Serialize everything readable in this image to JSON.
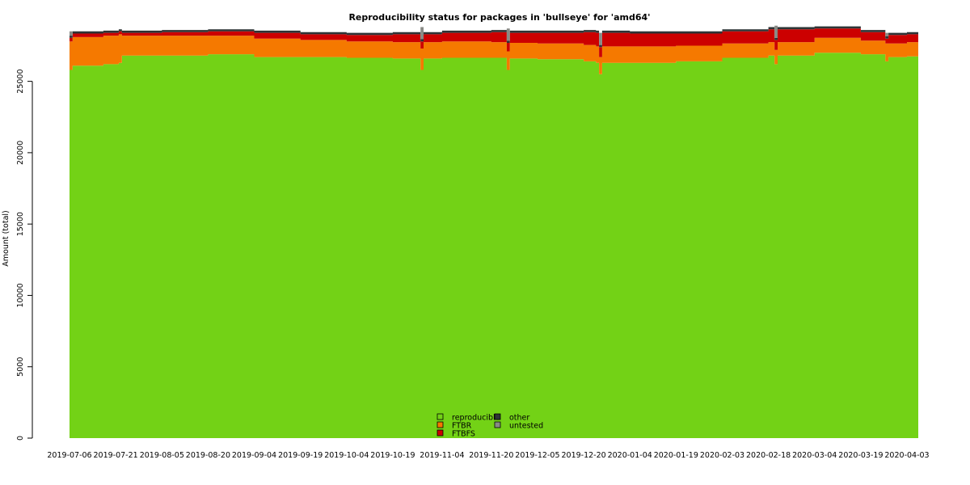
{
  "chart_data": {
    "type": "area",
    "stacked": true,
    "title": "Reproducibility status for packages in 'bullseye' for 'amd64'",
    "xlabel": "",
    "ylabel": "Amount (total)",
    "ylim": [
      0,
      29000
    ],
    "yticks": [
      0,
      5000,
      10000,
      15000,
      20000,
      25000
    ],
    "xlim": [
      "2019-07-06",
      "2020-04-10"
    ],
    "xticks": [
      "2019-07-06",
      "2019-07-21",
      "2019-08-05",
      "2019-08-20",
      "2019-09-04",
      "2019-09-19",
      "2019-10-04",
      "2019-10-19",
      "2019-11-04",
      "2019-11-20",
      "2019-12-05",
      "2019-12-20",
      "2020-01-04",
      "2020-01-19",
      "2020-02-03",
      "2020-02-18",
      "2020-03-04",
      "2020-03-19",
      "2020-04-03"
    ],
    "grid": false,
    "legend_position": "bottom-center",
    "series": [
      {
        "name": "reproducible",
        "color": "#73d216",
        "x": [
          "2019-07-06",
          "2019-07-07",
          "2019-07-17",
          "2019-07-22",
          "2019-07-23",
          "2019-08-05",
          "2019-08-20",
          "2019-09-04",
          "2019-09-19",
          "2019-10-04",
          "2019-10-19",
          "2019-10-27",
          "2019-10-28",
          "2019-10-29",
          "2019-11-04",
          "2019-11-20",
          "2019-11-24",
          "2019-11-25",
          "2019-11-26",
          "2019-12-05",
          "2019-12-20",
          "2019-12-24",
          "2019-12-25",
          "2019-12-26",
          "2020-01-04",
          "2020-01-19",
          "2020-02-03",
          "2020-02-18",
          "2020-02-20",
          "2020-02-21",
          "2020-03-04",
          "2020-03-19",
          "2020-03-27",
          "2020-03-28",
          "2020-04-03",
          "2020-04-10"
        ],
        "values": [
          25800,
          26100,
          26200,
          26300,
          26800,
          26800,
          26900,
          26700,
          26700,
          26650,
          26600,
          26600,
          25800,
          26600,
          26650,
          26650,
          26650,
          25800,
          26600,
          26550,
          26400,
          26300,
          25500,
          26300,
          26300,
          26400,
          26650,
          26800,
          26200,
          26800,
          27000,
          26900,
          26400,
          26700,
          26750,
          26750
        ]
      },
      {
        "name": "FTBR",
        "color": "#f57900",
        "x": [
          "2019-07-06",
          "2019-07-07",
          "2019-07-17",
          "2019-07-22",
          "2019-07-23",
          "2019-08-05",
          "2019-08-20",
          "2019-09-04",
          "2019-09-19",
          "2019-10-04",
          "2019-10-19",
          "2019-10-27",
          "2019-10-28",
          "2019-10-29",
          "2019-11-04",
          "2019-11-20",
          "2019-11-24",
          "2019-11-25",
          "2019-11-26",
          "2019-12-05",
          "2019-12-20",
          "2019-12-24",
          "2019-12-25",
          "2019-12-26",
          "2020-01-04",
          "2020-01-19",
          "2020-02-03",
          "2020-02-18",
          "2020-02-20",
          "2020-02-21",
          "2020-03-04",
          "2020-03-19",
          "2020-03-27",
          "2020-03-28",
          "2020-04-03",
          "2020-04-10"
        ],
        "values": [
          2000,
          2000,
          2000,
          2000,
          1400,
          1400,
          1300,
          1300,
          1200,
          1150,
          1150,
          1150,
          1500,
          1150,
          1150,
          1100,
          1100,
          1300,
          1100,
          1100,
          1150,
          1150,
          1200,
          1150,
          1150,
          1100,
          1000,
          950,
          1000,
          950,
          1050,
          950,
          1250,
          950,
          1000,
          1000
        ]
      },
      {
        "name": "FTBFS",
        "color": "#cc0000",
        "x": [
          "2019-07-06",
          "2019-07-07",
          "2019-07-17",
          "2019-07-22",
          "2019-07-23",
          "2019-08-05",
          "2019-08-20",
          "2019-09-04",
          "2019-09-19",
          "2019-10-04",
          "2019-10-19",
          "2019-10-27",
          "2019-10-28",
          "2019-10-29",
          "2019-11-04",
          "2019-11-20",
          "2019-11-24",
          "2019-11-25",
          "2019-11-26",
          "2019-12-05",
          "2019-12-20",
          "2019-12-24",
          "2019-12-25",
          "2019-12-26",
          "2020-01-04",
          "2020-01-19",
          "2020-02-03",
          "2020-02-18",
          "2020-02-20",
          "2020-02-21",
          "2020-03-04",
          "2020-03-19",
          "2020-03-27",
          "2020-03-28",
          "2020-04-03",
          "2020-04-10"
        ],
        "values": [
          250,
          250,
          200,
          200,
          200,
          250,
          300,
          400,
          400,
          450,
          550,
          550,
          500,
          550,
          600,
          700,
          700,
          600,
          700,
          750,
          900,
          950,
          700,
          950,
          900,
          850,
          850,
          900,
          700,
          900,
          650,
          600,
          350,
          600,
          550,
          550
        ]
      },
      {
        "name": "other",
        "color": "#2e3436",
        "x": [
          "2019-07-06",
          "2019-07-07",
          "2019-07-17",
          "2019-07-22",
          "2019-07-23",
          "2019-08-05",
          "2019-08-20",
          "2019-09-04",
          "2019-09-19",
          "2019-10-04",
          "2019-10-19",
          "2019-10-27",
          "2019-10-28",
          "2019-10-29",
          "2019-11-04",
          "2019-11-20",
          "2019-11-24",
          "2019-11-25",
          "2019-11-26",
          "2019-12-05",
          "2019-12-20",
          "2019-12-24",
          "2019-12-25",
          "2019-12-26",
          "2020-01-04",
          "2020-01-19",
          "2020-02-03",
          "2020-02-18",
          "2020-02-20",
          "2020-02-21",
          "2020-03-04",
          "2020-03-19",
          "2020-03-27",
          "2020-03-28",
          "2020-04-03",
          "2020-04-10"
        ],
        "values": [
          150,
          150,
          150,
          150,
          150,
          150,
          150,
          150,
          150,
          150,
          150,
          150,
          150,
          150,
          150,
          150,
          150,
          150,
          150,
          150,
          150,
          150,
          150,
          150,
          150,
          150,
          150,
          150,
          150,
          150,
          150,
          150,
          150,
          150,
          150,
          150
        ]
      },
      {
        "name": "untested",
        "color": "#888a85",
        "x": [
          "2019-07-06",
          "2019-07-07",
          "2019-07-17",
          "2019-07-22",
          "2019-07-23",
          "2019-08-05",
          "2019-08-20",
          "2019-09-04",
          "2019-09-19",
          "2019-10-04",
          "2019-10-19",
          "2019-10-27",
          "2019-10-28",
          "2019-10-29",
          "2019-11-04",
          "2019-11-20",
          "2019-11-24",
          "2019-11-25",
          "2019-11-26",
          "2019-12-05",
          "2019-12-20",
          "2019-12-24",
          "2019-12-25",
          "2019-12-26",
          "2020-01-04",
          "2020-01-19",
          "2020-02-03",
          "2020-02-18",
          "2020-02-20",
          "2020-02-21",
          "2020-03-04",
          "2020-03-19",
          "2020-03-27",
          "2020-03-28",
          "2020-04-03",
          "2020-04-10"
        ],
        "values": [
          300,
          0,
          0,
          0,
          0,
          0,
          0,
          0,
          0,
          0,
          0,
          0,
          850,
          0,
          0,
          0,
          0,
          850,
          0,
          0,
          0,
          0,
          850,
          0,
          0,
          0,
          0,
          0,
          850,
          0,
          0,
          0,
          250,
          0,
          0,
          0
        ]
      }
    ]
  }
}
